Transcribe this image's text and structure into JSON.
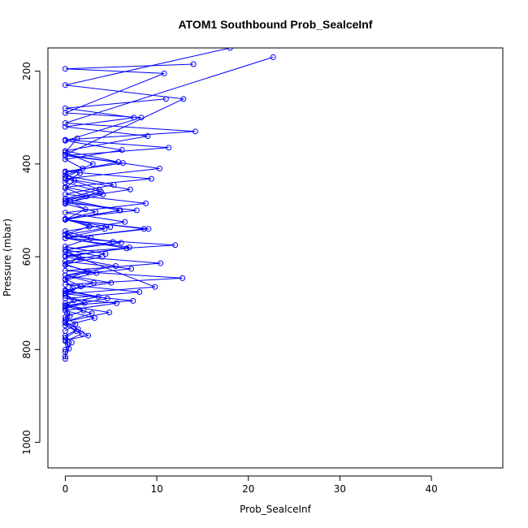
{
  "chart_data": {
    "type": "line",
    "title": "ATOM1 Southbound Prob_SealceInf",
    "xlabel": "Prob_SealceInf",
    "ylabel": "Pressure (mbar)",
    "xlim": [
      -1.9,
      47.8
    ],
    "ylim": [
      1055,
      150
    ],
    "y_reversed": true,
    "x_ticks": [
      0,
      10,
      20,
      30,
      40
    ],
    "y_ticks": [
      200,
      400,
      600,
      800,
      1000
    ],
    "grid": false,
    "legend": "none",
    "series_color": "#0000ff",
    "marker": "open-circle",
    "series": [
      {
        "x": [
          0.0,
          0.0,
          0.3,
          0.0,
          1.2,
          0.0,
          0.5,
          0.0,
          2.1,
          0.0,
          0.8,
          0.0,
          3.4,
          0.0,
          1.5,
          0.0,
          5.2,
          0.0,
          2.6,
          0.0,
          7.8,
          0.0,
          4.1,
          0.0,
          9.4,
          0.0,
          6.3,
          0.0,
          11.3,
          0.0,
          14.2,
          0.0,
          22.7
        ],
        "y": [
          820,
          805,
          790,
          775,
          760,
          742,
          728,
          712,
          700,
          684,
          668,
          650,
          635,
          618,
          602,
          585,
          568,
          552,
          535,
          518,
          500,
          484,
          466,
          450,
          432,
          416,
          398,
          382,
          365,
          348,
          330,
          312,
          170
        ]
      },
      {
        "x": [
          0.0,
          0.4,
          0.0,
          1.8,
          0.0,
          3.2,
          0.0,
          5.6,
          0.0,
          8.1,
          0.0,
          12.8,
          0.0,
          10.4,
          0.0,
          6.7,
          0.0,
          4.3,
          0.0,
          2.2,
          0.0,
          7.1,
          0.0,
          10.3,
          0.0,
          12.9,
          0.0,
          18.0
        ],
        "y": [
          815,
          798,
          782,
          766,
          748,
          732,
          716,
          700,
          690,
          676,
          660,
          646,
          630,
          614,
          598,
          582,
          560,
          540,
          520,
          498,
          476,
          455,
          432,
          410,
          380,
          260,
          230,
          150
        ]
      },
      {
        "x": [
          0.0,
          2.5,
          0.0,
          4.8,
          0.0,
          7.4,
          0.0,
          9.8,
          0.0,
          12.0,
          0.0,
          8.6,
          0.0,
          5.9,
          0.0,
          3.7,
          0.0,
          1.9,
          0.0,
          6.2,
          0.0,
          8.3,
          0.0,
          10.8,
          0.0,
          14.0
        ],
        "y": [
          780,
          770,
          740,
          720,
          705,
          695,
          680,
          665,
          590,
          575,
          560,
          540,
          520,
          500,
          475,
          455,
          430,
          410,
          390,
          370,
          350,
          300,
          290,
          205,
          195,
          185
        ]
      },
      {
        "x": [
          0.0,
          0.7,
          0.0,
          1.4,
          0.0,
          2.9,
          0.0,
          4.6,
          0.0,
          3.1,
          0.0,
          5.5,
          0.0,
          7.0,
          0.0,
          9.1,
          0.0,
          6.0,
          0.0,
          3.9,
          0.0,
          1.6
        ],
        "y": [
          800,
          785,
          770,
          756,
          740,
          722,
          706,
          690,
          674,
          656,
          640,
          620,
          600,
          580,
          560,
          540,
          520,
          500,
          480,
          460,
          440,
          420
        ]
      },
      {
        "x": [
          0.0,
          1.1,
          0.0,
          2.0,
          0.0,
          3.6,
          0.0,
          5.0,
          0.0,
          7.2,
          0.0,
          4.4,
          0.0,
          2.8,
          0.0,
          6.5,
          0.0,
          8.8,
          0.0,
          5.3,
          0.0,
          3.0,
          0.0,
          1.3
        ],
        "y": [
          760,
          745,
          730,
          716,
          700,
          686,
          672,
          656,
          640,
          626,
          610,
          594,
          578,
          560,
          545,
          525,
          505,
          485,
          465,
          445,
          425,
          400,
          375,
          345
        ]
      },
      {
        "x": [
          0.0,
          0.2,
          0.0,
          0.9,
          0.0,
          1.7,
          0.0,
          2.4,
          0.0,
          4.0,
          0.0,
          6.1,
          0.0,
          4.9,
          0.0,
          3.3,
          0.0,
          2.3,
          0.0,
          1.0,
          0.0,
          5.8,
          0.0,
          9.0,
          0.0,
          7.5,
          0.0,
          11.0
        ],
        "y": [
          735,
          722,
          708,
          694,
          678,
          664,
          648,
          632,
          616,
          600,
          585,
          570,
          553,
          536,
          520,
          503,
          486,
          470,
          452,
          436,
          418,
          396,
          372,
          340,
          320,
          300,
          280,
          260
        ]
      }
    ]
  }
}
